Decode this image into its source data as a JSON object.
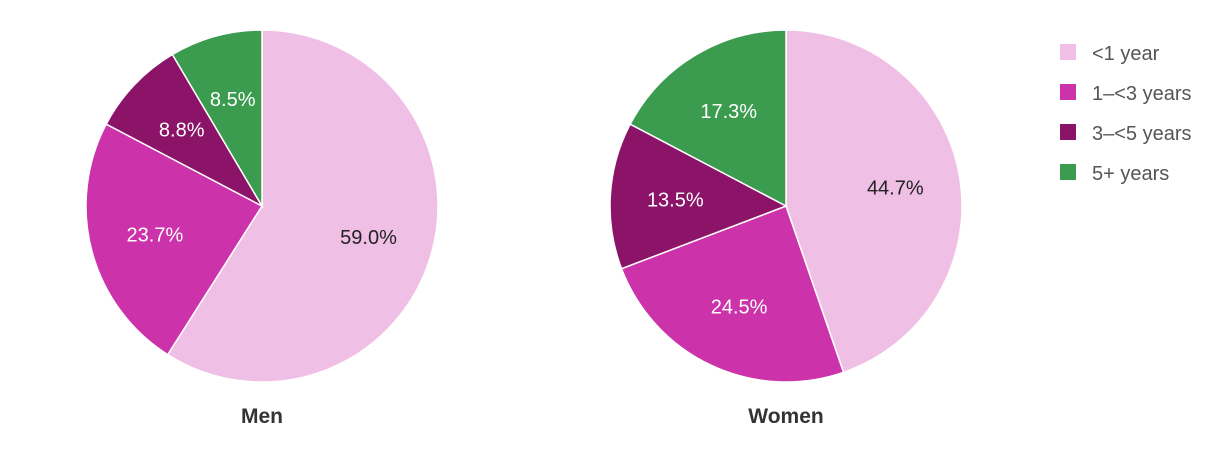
{
  "chart_data": [
    {
      "type": "pie",
      "title": "Men",
      "categories": [
        "<1 year",
        "1–<3 years",
        "3–<5 years",
        "5+ years"
      ],
      "values": [
        59.0,
        23.7,
        8.8,
        8.5
      ],
      "labels": [
        "59.0%",
        "23.7%",
        "8.8%",
        "8.5%"
      ]
    },
    {
      "type": "pie",
      "title": "Women",
      "categories": [
        "<1 year",
        "1–<3 years",
        "3–<5 years",
        "5+ years"
      ],
      "values": [
        44.7,
        24.5,
        13.5,
        17.3
      ],
      "labels": [
        "44.7%",
        "24.5%",
        "13.5%",
        "17.3%"
      ]
    }
  ],
  "legend": {
    "placement": "top-right",
    "items": [
      {
        "label": "<1 year",
        "color": "#f0bfe5"
      },
      {
        "label": "1–<3 years",
        "color": "#cc33aa"
      },
      {
        "label": "3–<5 years",
        "color": "#8b1469"
      },
      {
        "label": "5+ years",
        "color": "#3b9b4f"
      }
    ]
  },
  "label_colors": [
    "#222222",
    "#ffffff",
    "#ffffff",
    "#ffffff"
  ]
}
